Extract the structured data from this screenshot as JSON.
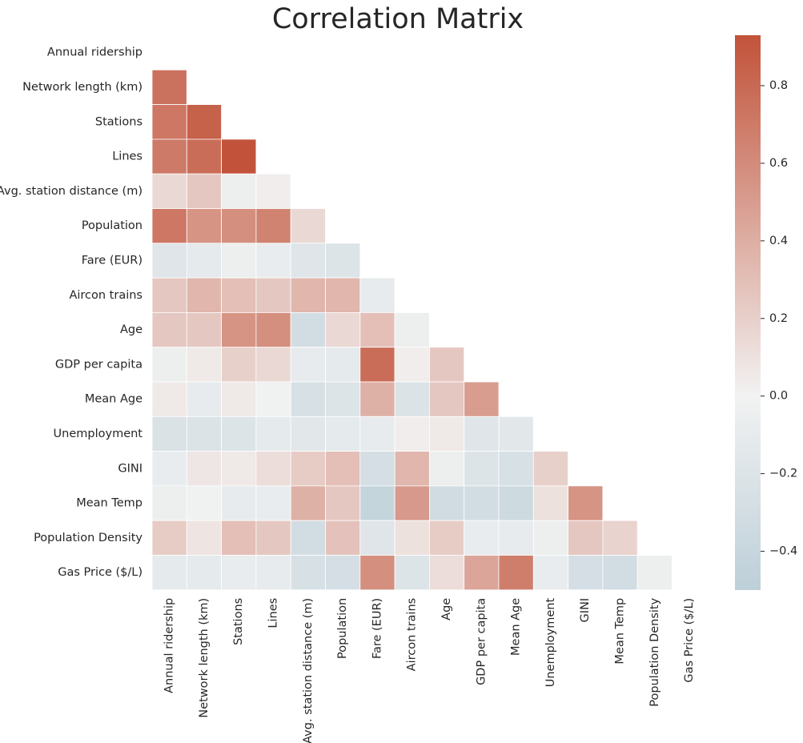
{
  "chart_data": {
    "type": "heatmap",
    "title": "Correlation Matrix",
    "xlabel": "",
    "ylabel": "",
    "mask": "upper-triangle-including-diagonal",
    "labels": [
      "Annual ridership",
      "Network length (km)",
      "Stations",
      "Lines",
      "Avg. station distance (m)",
      "Population",
      "Fare (EUR)",
      "Aircon trains",
      "Age",
      "GDP per capita",
      "Mean Age",
      "Unemployment",
      "GINI",
      "Mean Temp",
      "Population Density",
      "Gas Price ($/L)"
    ],
    "values": [
      [],
      [
        0.75
      ],
      [
        0.72,
        0.85
      ],
      [
        0.7,
        0.78,
        0.93
      ],
      [
        0.15,
        0.25,
        -0.05,
        0.03
      ],
      [
        0.72,
        0.55,
        0.58,
        0.65,
        0.15
      ],
      [
        -0.18,
        -0.12,
        -0.05,
        -0.08,
        -0.18,
        -0.2
      ],
      [
        0.25,
        0.35,
        0.3,
        0.25,
        0.35,
        0.35,
        -0.1
      ],
      [
        0.25,
        0.25,
        0.55,
        0.58,
        -0.3,
        0.15,
        0.3,
        -0.05
      ],
      [
        -0.05,
        0.05,
        0.2,
        0.15,
        -0.1,
        -0.12,
        0.78,
        0.03,
        0.25
      ],
      [
        0.05,
        -0.1,
        0.05,
        -0.02,
        -0.25,
        -0.2,
        0.38,
        -0.22,
        0.25,
        0.5
      ],
      [
        -0.23,
        -0.22,
        -0.2,
        -0.12,
        -0.15,
        -0.12,
        -0.1,
        0.03,
        0.05,
        -0.18,
        -0.15
      ],
      [
        -0.08,
        0.07,
        0.05,
        0.12,
        0.22,
        0.3,
        -0.28,
        0.35,
        -0.05,
        -0.2,
        -0.25,
        0.2
      ],
      [
        -0.05,
        -0.02,
        -0.1,
        -0.08,
        0.38,
        0.25,
        -0.42,
        0.52,
        -0.32,
        -0.3,
        -0.35,
        0.1,
        0.55
      ],
      [
        0.22,
        0.08,
        0.3,
        0.25,
        -0.3,
        0.28,
        -0.18,
        0.1,
        0.22,
        -0.08,
        -0.1,
        -0.05,
        0.25,
        0.18
      ],
      [
        -0.12,
        -0.12,
        -0.08,
        -0.1,
        -0.25,
        -0.28,
        0.58,
        -0.2,
        0.12,
        0.45,
        0.68,
        -0.08,
        -0.28,
        -0.3,
        -0.05
      ]
    ],
    "vmin": -0.5,
    "vmax": 0.93,
    "colormap": {
      "negative": "#8FB1C2",
      "center": "#F2F2F2",
      "positive": "#C2533A"
    },
    "colorbar_ticks": [
      -0.4,
      -0.2,
      0.0,
      0.2,
      0.4,
      0.6,
      0.8
    ],
    "colorbar_tick_labels": [
      "−0.4",
      "−0.2",
      "0.0",
      "0.2",
      "0.4",
      "0.6",
      "0.8"
    ],
    "grid_line_color": "#ffffff"
  }
}
